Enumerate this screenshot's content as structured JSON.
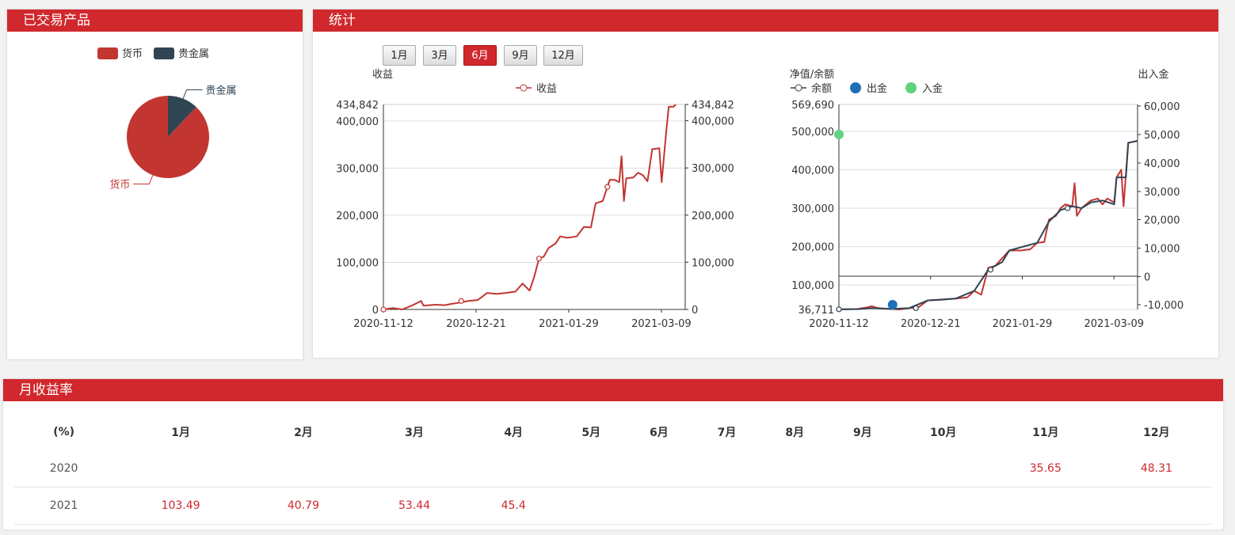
{
  "panels": {
    "products_title": "已交易产品",
    "stats_title": "统计",
    "monthly_title": "月收益率"
  },
  "pie": {
    "legend": [
      {
        "name": "货币",
        "color": "#c23531"
      },
      {
        "name": "贵金属",
        "color": "#2f4554"
      }
    ],
    "slices": [
      {
        "name": "货币",
        "share": 0.88,
        "color": "#c23531"
      },
      {
        "name": "贵金属",
        "share": 0.12,
        "color": "#2f4554"
      }
    ]
  },
  "range_buttons": [
    {
      "label": "1月",
      "active": false
    },
    {
      "label": "3月",
      "active": false
    },
    {
      "label": "6月",
      "active": true
    },
    {
      "label": "9月",
      "active": false
    },
    {
      "label": "12月",
      "active": false
    }
  ],
  "chart_data": [
    {
      "type": "line",
      "y_axis_name": "收益",
      "legend": [
        "收益"
      ],
      "x_ticks": [
        "2020-11-12",
        "2020-12-21",
        "2021-01-29",
        "2021-03-09"
      ],
      "y_ticks": [
        "434,842",
        "400,000",
        "300,000",
        "200,000",
        "100,000",
        "0"
      ],
      "ylim": [
        0,
        434842
      ],
      "series": [
        {
          "name": "收益",
          "color": "#c23531",
          "points": [
            [
              0,
              0
            ],
            [
              4,
              3000
            ],
            [
              8,
              0
            ],
            [
              12,
              8000
            ],
            [
              16,
              18000
            ],
            [
              17,
              8000
            ],
            [
              22,
              10000
            ],
            [
              26,
              9000
            ],
            [
              29,
              12000
            ],
            [
              33,
              15000
            ],
            [
              36,
              18000
            ],
            [
              40,
              20000
            ],
            [
              44,
              35000
            ],
            [
              48,
              33000
            ],
            [
              52,
              35000
            ],
            [
              56,
              38000
            ],
            [
              59,
              55000
            ],
            [
              62,
              40000
            ],
            [
              64,
              70000
            ],
            [
              66,
              108000
            ],
            [
              68,
              112000
            ],
            [
              70,
              130000
            ],
            [
              73,
              140000
            ],
            [
              75,
              155000
            ],
            [
              78,
              152000
            ],
            [
              82,
              155000
            ],
            [
              85,
              175000
            ],
            [
              88,
              174000
            ],
            [
              90,
              225000
            ],
            [
              93,
              230000
            ],
            [
              95,
              260000
            ],
            [
              96,
              275000
            ],
            [
              98,
              275000
            ],
            [
              100,
              270000
            ],
            [
              101,
              325000
            ],
            [
              102,
              230000
            ],
            [
              103,
              278000
            ],
            [
              106,
              280000
            ],
            [
              108,
              290000
            ],
            [
              110,
              285000
            ],
            [
              112,
              272000
            ],
            [
              114,
              340000
            ],
            [
              117,
              342000
            ],
            [
              118,
              270000
            ],
            [
              120,
              380000
            ],
            [
              121,
              430000
            ],
            [
              123,
              430000
            ],
            [
              124,
              434842
            ]
          ],
          "markers": [
            [
              0,
              0
            ],
            [
              33,
              18000
            ],
            [
              66,
              108000
            ],
            [
              95,
              260000
            ]
          ]
        }
      ]
    },
    {
      "type": "line",
      "y_axis_name": "净值/余额",
      "y2_axis_name": "出入金",
      "legend": [
        "净值",
        "余额",
        "出金",
        "入金"
      ],
      "x_ticks": [
        "2020-11-12",
        "2020-12-21",
        "2021-01-29",
        "2021-03-09"
      ],
      "y_ticks": [
        "569,690",
        "500,000",
        "400,000",
        "300,000",
        "200,000",
        "100,000",
        "36,711"
      ],
      "y2_ticks": [
        "60,000",
        "50,000",
        "40,000",
        "30,000",
        "20,000",
        "10,000",
        "0",
        "-10,000"
      ],
      "ylim": [
        36711,
        569690
      ],
      "y2lim": [
        -10000,
        60000
      ],
      "series": [
        {
          "name": "净值",
          "color": "#c23531",
          "points": [
            [
              0,
              37000
            ],
            [
              8,
              38000
            ],
            [
              12,
              42000
            ],
            [
              14,
              45000
            ],
            [
              17,
              40000
            ],
            [
              22,
              38000
            ],
            [
              26,
              36711
            ],
            [
              30,
              40000
            ],
            [
              34,
              42000
            ],
            [
              38,
              60000
            ],
            [
              44,
              62000
            ],
            [
              50,
              65000
            ],
            [
              55,
              68000
            ],
            [
              58,
              85000
            ],
            [
              61,
              75000
            ],
            [
              64,
              145000
            ],
            [
              67,
              150000
            ],
            [
              70,
              170000
            ],
            [
              73,
              190000
            ],
            [
              78,
              190000
            ],
            [
              82,
              193000
            ],
            [
              85,
              210000
            ],
            [
              88,
              212000
            ],
            [
              90,
              270000
            ],
            [
              93,
              280000
            ],
            [
              95,
              300000
            ],
            [
              97,
              310000
            ],
            [
              100,
              305000
            ],
            [
              101,
              365000
            ],
            [
              102,
              280000
            ],
            [
              104,
              300000
            ],
            [
              108,
              320000
            ],
            [
              111,
              325000
            ],
            [
              113,
              310000
            ],
            [
              115,
              325000
            ],
            [
              118,
              315000
            ],
            [
              119,
              380000
            ],
            [
              121,
              400000
            ],
            [
              122,
              305000
            ],
            [
              124,
              470000
            ],
            [
              128,
              475000
            ]
          ]
        },
        {
          "name": "余额",
          "color": "#2f4554",
          "points": [
            [
              0,
              37000
            ],
            [
              8,
              37500
            ],
            [
              14,
              40000
            ],
            [
              22,
              38000
            ],
            [
              30,
              40000
            ],
            [
              38,
              60000
            ],
            [
              50,
              65000
            ],
            [
              58,
              85000
            ],
            [
              64,
              140000
            ],
            [
              70,
              160000
            ],
            [
              73,
              190000
            ],
            [
              85,
              210000
            ],
            [
              90,
              265000
            ],
            [
              95,
              295000
            ],
            [
              100,
              305000
            ],
            [
              104,
              300000
            ],
            [
              108,
              315000
            ],
            [
              113,
              320000
            ],
            [
              118,
              310000
            ],
            [
              119,
              380000
            ],
            [
              123,
              380000
            ],
            [
              124,
              470000
            ],
            [
              128,
              475000
            ]
          ],
          "markers": [
            [
              0,
              37000
            ],
            [
              33,
              40000
            ],
            [
              65,
              140000
            ],
            [
              98,
              300000
            ]
          ]
        }
      ],
      "cash_events": [
        {
          "name": "入金",
          "x": 0,
          "y2": 50000,
          "color": "#61d27e"
        },
        {
          "name": "出金",
          "x": 23,
          "y2": -10000,
          "color": "#1f6fb5"
        }
      ],
      "y2_zero_line": true
    }
  ],
  "monthly": {
    "headers": [
      "(%)",
      "1月",
      "2月",
      "3月",
      "4月",
      "5月",
      "6月",
      "7月",
      "8月",
      "9月",
      "10月",
      "11月",
      "12月"
    ],
    "rows": [
      {
        "year": "2020",
        "values": [
          "",
          "",
          "",
          "",
          "",
          "",
          "",
          "",
          "",
          "",
          "35.65",
          "48.31"
        ]
      },
      {
        "year": "2021",
        "values": [
          "103.49",
          "40.79",
          "53.44",
          "45.4",
          "",
          "",
          "",
          "",
          "",
          "",
          "",
          ""
        ]
      }
    ]
  }
}
